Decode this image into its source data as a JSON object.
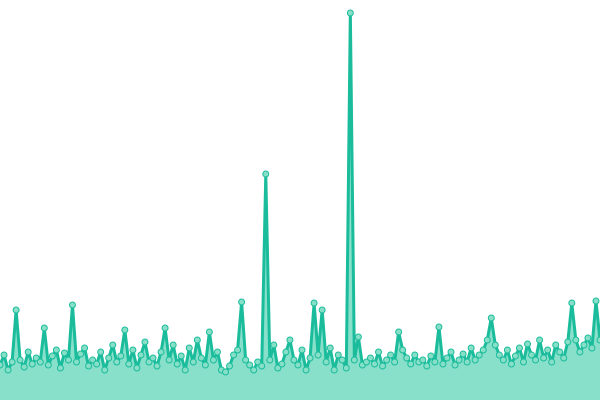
{
  "chart_data": {
    "type": "area",
    "color": "#1abc9c",
    "fill": "#88e0cb",
    "marker_fill": "#86dfc6",
    "ylim": [
      0,
      400
    ],
    "values": [
      35,
      45,
      30,
      38,
      90,
      40,
      33,
      48,
      36,
      42,
      38,
      72,
      35,
      44,
      50,
      32,
      47,
      40,
      95,
      38,
      46,
      52,
      34,
      40,
      36,
      48,
      30,
      42,
      55,
      38,
      44,
      70,
      36,
      50,
      32,
      45,
      58,
      38,
      42,
      34,
      48,
      72,
      40,
      55,
      36,
      44,
      30,
      52,
      38,
      60,
      42,
      35,
      68,
      40,
      48,
      30,
      28,
      34,
      45,
      50,
      98,
      40,
      35,
      30,
      38,
      34,
      226,
      40,
      55,
      32,
      36,
      48,
      60,
      40,
      35,
      50,
      30,
      42,
      97,
      45,
      90,
      38,
      52,
      30,
      45,
      40,
      32,
      387,
      40,
      63,
      35,
      38,
      42,
      36,
      48,
      34,
      40,
      45,
      38,
      68,
      50,
      42,
      36,
      45,
      38,
      40,
      34,
      44,
      38,
      73,
      36,
      42,
      48,
      35,
      40,
      46,
      38,
      52,
      40,
      45,
      50,
      60,
      82,
      55,
      45,
      40,
      50,
      36,
      44,
      52,
      38,
      56,
      45,
      40,
      60,
      42,
      50,
      38,
      55,
      48,
      42,
      58,
      97,
      60,
      48,
      55,
      62,
      52,
      99,
      60
    ]
  }
}
